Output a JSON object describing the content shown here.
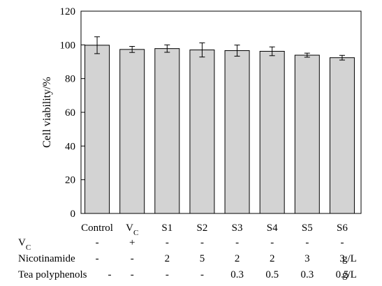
{
  "chart_data": {
    "type": "bar",
    "ylabel": "Cell viability/%",
    "ylim": [
      0,
      120
    ],
    "yticks": [
      0,
      20,
      40,
      60,
      80,
      100,
      120
    ],
    "categories": [
      {
        "main": "Control",
        "sub": ""
      },
      {
        "main": "V",
        "sub": "C"
      },
      {
        "main": "S1",
        "sub": ""
      },
      {
        "main": "S2",
        "sub": ""
      },
      {
        "main": "S3",
        "sub": ""
      },
      {
        "main": "S4",
        "sub": ""
      },
      {
        "main": "S5",
        "sub": ""
      },
      {
        "main": "S6",
        "sub": ""
      }
    ],
    "values": [
      99.8,
      97.3,
      97.8,
      97.0,
      96.6,
      96.2,
      93.9,
      92.4
    ],
    "errors": [
      5.0,
      1.8,
      2.2,
      4.2,
      3.3,
      2.6,
      1.2,
      1.4
    ],
    "bar_color": "#d3d3d3",
    "grid": false
  },
  "conditions": {
    "unit": "g/L",
    "rows": [
      {
        "label": "V",
        "label_sub": "C",
        "values": [
          "-",
          "+",
          "-",
          "-",
          "-",
          "-",
          "-",
          "-"
        ],
        "unit": ""
      },
      {
        "label": "Nicotinamide",
        "label_sub": "",
        "values": [
          "-",
          "-",
          "2",
          "5",
          "2",
          "2",
          "3",
          "3"
        ],
        "unit": "g/L"
      },
      {
        "label": "Tea polyphenols",
        "label_sub": "",
        "values": [
          "-",
          "-",
          "-",
          "-",
          "0.3",
          "0.5",
          "0.3",
          "0.5"
        ],
        "unit": "g/L"
      }
    ]
  }
}
